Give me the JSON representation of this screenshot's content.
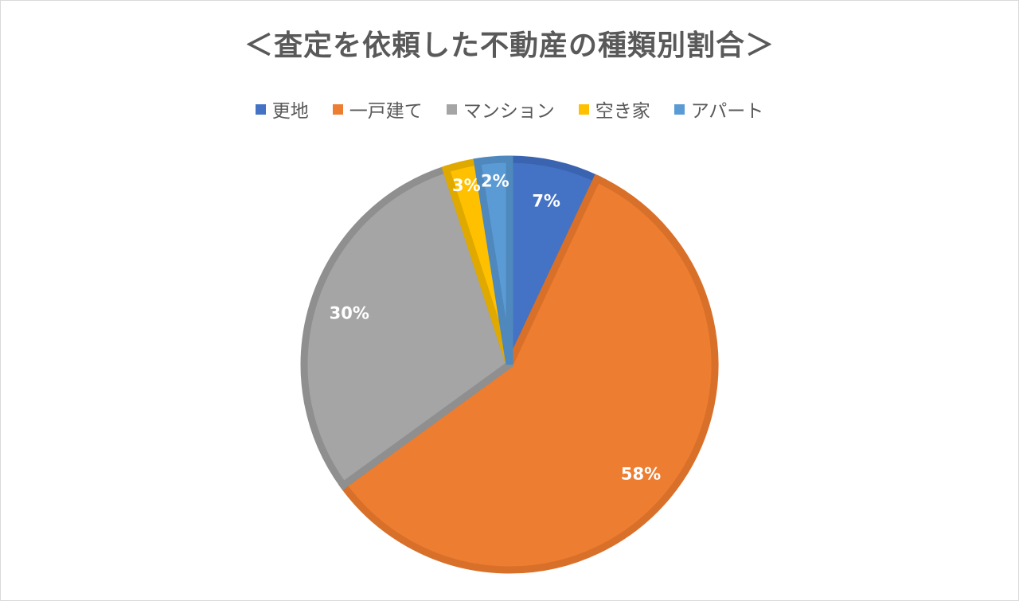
{
  "chart_data": {
    "type": "pie",
    "title": "＜査定を依頼した不動産の種類別割合＞",
    "legend_position": "top",
    "slices": [
      {
        "label": "更地",
        "value": 7,
        "display": "7%",
        "color": "#4472c4",
        "stroke": "#3a63b0"
      },
      {
        "label": "一戸建て",
        "value": 58,
        "display": "58%",
        "color": "#ed7d31",
        "stroke": "#d8702a"
      },
      {
        "label": "マンション",
        "value": 30,
        "display": "30%",
        "color": "#a5a5a5",
        "stroke": "#8f8f8f"
      },
      {
        "label": "空き家",
        "value": 2.5,
        "display": "3%",
        "color": "#ffc000",
        "stroke": "#e0a900"
      },
      {
        "label": "アパート",
        "value": 2.5,
        "display": "2%",
        "color": "#5b9bd5",
        "stroke": "#4e88bd"
      }
    ]
  }
}
